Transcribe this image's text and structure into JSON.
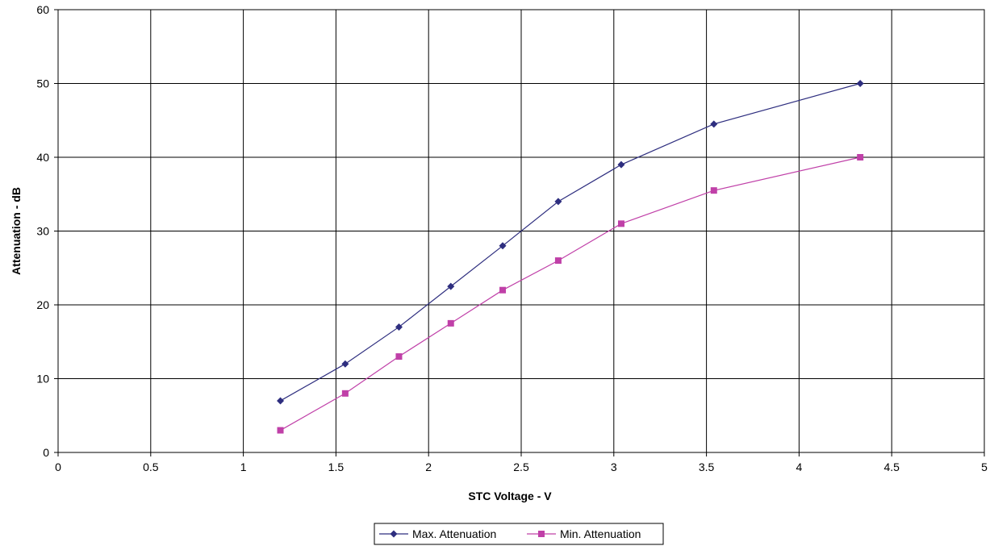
{
  "chart_data": {
    "type": "line",
    "title": "",
    "xlabel": "STC Voltage - V",
    "ylabel": "Attenuation - dB",
    "xlim": [
      0,
      5
    ],
    "ylim": [
      0,
      60
    ],
    "x_ticks": [
      0,
      0.5,
      1,
      1.5,
      2,
      2.5,
      3,
      3.5,
      4,
      4.5,
      5
    ],
    "y_ticks": [
      0,
      10,
      20,
      30,
      40,
      50,
      60
    ],
    "x_tick_labels": [
      "0",
      "0.5",
      "1",
      "1.5",
      "2",
      "2.5",
      "3",
      "3.5",
      "4",
      "4.5",
      "5"
    ],
    "y_tick_labels": [
      "0",
      "10",
      "20",
      "30",
      "40",
      "50",
      "60"
    ],
    "grid": true,
    "legend_position": "bottom",
    "series": [
      {
        "name": "Max. Attenuation",
        "color": "#2e2e7f",
        "marker": "diamond",
        "x": [
          1.2,
          1.55,
          1.84,
          2.12,
          2.4,
          2.7,
          3.04,
          3.54,
          4.33
        ],
        "y": [
          7,
          12,
          17,
          22.5,
          28,
          34,
          39,
          44.5,
          50
        ]
      },
      {
        "name": "Min. Attenuation",
        "color": "#c040a8",
        "marker": "square",
        "x": [
          1.2,
          1.55,
          1.84,
          2.12,
          2.4,
          2.7,
          3.04,
          3.54,
          4.33
        ],
        "y": [
          3,
          8,
          13,
          17.5,
          22,
          26,
          31,
          35.5,
          40
        ]
      }
    ]
  }
}
